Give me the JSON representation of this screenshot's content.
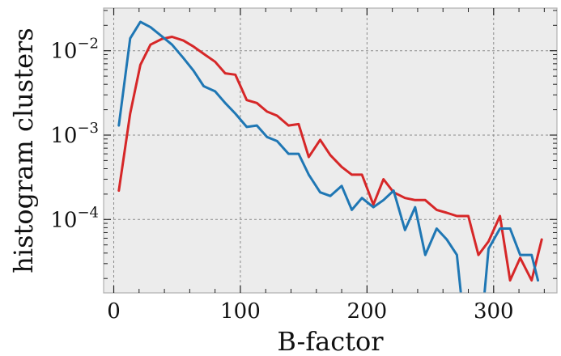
{
  "chart_data": {
    "type": "line",
    "xlabel": "B-factor",
    "ylabel": "histogram clusters",
    "xlim": [
      -8,
      350
    ],
    "ylim": [
      1.35e-05,
      0.032
    ],
    "yscale": "log",
    "grid": true,
    "x_ticks": [
      0,
      100,
      200,
      300
    ],
    "y_ticks": [
      {
        "value": 0.01,
        "base": "10",
        "exp": "−2"
      },
      {
        "value": 0.001,
        "base": "10",
        "exp": "−3"
      },
      {
        "value": 0.0001,
        "base": "10",
        "exp": "−4"
      }
    ],
    "series": [
      {
        "color": "#d62728",
        "x": [
          4,
          13,
          21,
          29,
          38,
          46,
          55,
          63,
          71,
          80,
          88,
          96,
          105,
          113,
          121,
          129,
          138,
          146,
          154,
          163,
          171,
          180,
          188,
          196,
          205,
          213,
          221,
          230,
          238,
          246,
          255,
          263,
          271,
          280,
          288,
          296,
          305,
          313,
          321,
          330,
          338
        ],
        "y": [
          0.00022,
          0.0018,
          0.0068,
          0.0118,
          0.0138,
          0.0146,
          0.0132,
          0.0112,
          0.0092,
          0.0074,
          0.0054,
          0.0052,
          0.0026,
          0.0024,
          0.0019,
          0.0017,
          0.0013,
          0.00135,
          0.00055,
          0.00088,
          0.00058,
          0.00042,
          0.00034,
          0.00034,
          0.00015,
          0.0003,
          0.00021,
          0.00018,
          0.00017,
          0.00017,
          0.00013,
          0.00012,
          0.00011,
          0.00011,
          3.8e-05,
          5.5e-05,
          0.00011,
          1.9e-05,
          3.5e-05,
          1.9e-05,
          5.8e-05
        ]
      },
      {
        "color": "#1f77b4",
        "x": [
          4,
          13,
          21,
          29,
          38,
          46,
          55,
          63,
          71,
          80,
          88,
          96,
          105,
          113,
          121,
          129,
          138,
          146,
          154,
          163,
          171,
          180,
          188,
          196,
          205,
          213,
          221,
          230,
          238,
          246,
          255,
          263,
          271,
          275,
          280,
          288,
          292,
          296,
          305,
          313,
          321,
          330,
          335
        ],
        "y": [
          0.0013,
          0.014,
          0.022,
          0.019,
          0.0148,
          0.0118,
          0.0082,
          0.0058,
          0.0038,
          0.0033,
          0.0024,
          0.0018,
          0.00125,
          0.0013,
          0.00095,
          0.00085,
          0.0006,
          0.0006,
          0.00034,
          0.00021,
          0.00019,
          0.00025,
          0.00013,
          0.00018,
          0.00014,
          0.00017,
          0.00022,
          7.5e-05,
          0.00014,
          3.8e-05,
          7.8e-05,
          5.8e-05,
          3.8e-05,
          1e-05,
          1e-05,
          1e-05,
          1e-05,
          4.5e-05,
          7.8e-05,
          7.8e-05,
          3.8e-05,
          3.8e-05,
          1.9e-05
        ]
      }
    ]
  }
}
